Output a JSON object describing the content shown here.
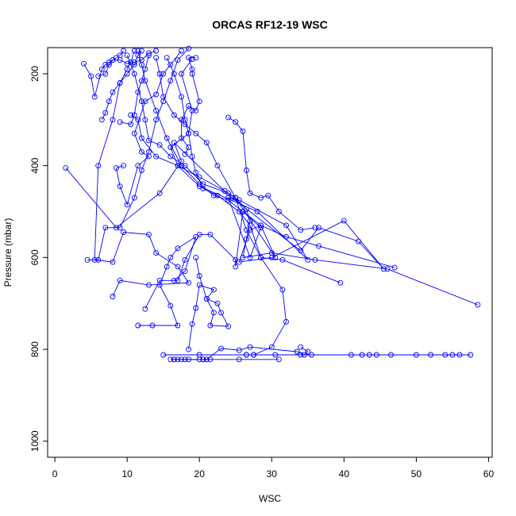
{
  "chart_data": {
    "type": "line",
    "title": "ORCAS RF12-19 WSC",
    "xlabel": "WSC",
    "ylabel": "Pressure (mbar)",
    "xlim": [
      -1,
      60.5
    ],
    "ylim": [
      1035,
      143
    ],
    "y_reversed": true,
    "x_ticks": [
      0,
      10,
      20,
      30,
      40,
      50,
      60
    ],
    "y_ticks": [
      200,
      400,
      600,
      800,
      1000
    ],
    "grid": false,
    "color": "#0000ff",
    "series": [
      {
        "points": [
          [
            1.5,
            405
          ],
          [
            8.5,
            535
          ],
          [
            14.5,
            460
          ],
          [
            17.5,
            390
          ],
          [
            16.5,
            350
          ],
          [
            24.5,
            470
          ],
          [
            34,
            585
          ],
          [
            36.5,
            535
          ],
          [
            42,
            565
          ],
          [
            45.5,
            625
          ],
          [
            40,
            520
          ],
          [
            30,
            600
          ],
          [
            25.5,
            610
          ],
          [
            27,
            540
          ],
          [
            28.5,
            530
          ],
          [
            30.5,
            600
          ],
          [
            25,
            470
          ],
          [
            23.5,
            455
          ],
          [
            20,
            425
          ],
          [
            17,
            400
          ],
          [
            16,
            360
          ],
          [
            18.5,
            330
          ],
          [
            19,
            280
          ],
          [
            17.5,
            200
          ],
          [
            19,
            168
          ]
        ]
      },
      {
        "points": [
          [
            4.5,
            605
          ],
          [
            6,
            605
          ],
          [
            7,
            535
          ],
          [
            9,
            535
          ],
          [
            11,
            470
          ],
          [
            12,
            410
          ],
          [
            13,
            370
          ],
          [
            14,
            300
          ],
          [
            15,
            260
          ],
          [
            16,
            215
          ],
          [
            17,
            170
          ],
          [
            18.5,
            145
          ]
        ]
      },
      {
        "points": [
          [
            8,
            685
          ],
          [
            9,
            650
          ],
          [
            13,
            660
          ],
          [
            18.5,
            655
          ],
          [
            17,
            620
          ],
          [
            14,
            590
          ],
          [
            13,
            550
          ],
          [
            9.5,
            545
          ],
          [
            8,
            610
          ],
          [
            5.5,
            605
          ],
          [
            6,
            400
          ],
          [
            8,
            300
          ],
          [
            9,
            220
          ],
          [
            10,
            190
          ],
          [
            10.5,
            175
          ],
          [
            11,
            150
          ]
        ]
      },
      {
        "points": [
          [
            12.5,
            712
          ],
          [
            14.5,
            650
          ],
          [
            17,
            650
          ],
          [
            18,
            605
          ],
          [
            20,
            550
          ],
          [
            21.5,
            550
          ],
          [
            25,
            605
          ],
          [
            25,
            620
          ],
          [
            26,
            500
          ],
          [
            28.5,
            535
          ],
          [
            27,
            600
          ],
          [
            24,
            470
          ],
          [
            25.5,
            475
          ],
          [
            32,
            530
          ],
          [
            35,
            605
          ],
          [
            28,
            500
          ],
          [
            20,
            445
          ],
          [
            17,
            400
          ],
          [
            14,
            380
          ],
          [
            12,
            340
          ],
          [
            11.5,
            300
          ],
          [
            10.5,
            290
          ]
        ]
      },
      {
        "points": [
          [
            11.5,
            748
          ],
          [
            13.5,
            748
          ],
          [
            17,
            748
          ],
          [
            16,
            705
          ],
          [
            14.5,
            660
          ],
          [
            15.5,
            620
          ],
          [
            16,
            600
          ],
          [
            17,
            580
          ],
          [
            19.5,
            555
          ],
          [
            18,
            630
          ],
          [
            16.5,
            650
          ]
        ]
      },
      {
        "points": [
          [
            15,
            812
          ],
          [
            20,
            812
          ],
          [
            26.5,
            812
          ],
          [
            27.5,
            812
          ],
          [
            30.5,
            812
          ],
          [
            34,
            812
          ],
          [
            35.5,
            812
          ],
          [
            41,
            812
          ],
          [
            42.5,
            812
          ],
          [
            43.5,
            812
          ],
          [
            44.5,
            812
          ],
          [
            46.5,
            812
          ],
          [
            50,
            812
          ],
          [
            52,
            812
          ],
          [
            54,
            812
          ],
          [
            55,
            812
          ],
          [
            56,
            812
          ],
          [
            57.5,
            812
          ]
        ]
      },
      {
        "points": [
          [
            16,
            822
          ],
          [
            16.5,
            822
          ],
          [
            17,
            822
          ],
          [
            18,
            822
          ],
          [
            20.5,
            822
          ],
          [
            21,
            822
          ],
          [
            21.5,
            822
          ],
          [
            25.5,
            822
          ],
          [
            31,
            822
          ]
        ]
      },
      {
        "points": [
          [
            16.5,
            822
          ],
          [
            17.5,
            822
          ],
          [
            18.5,
            822
          ],
          [
            20,
            822
          ],
          [
            20.5,
            822
          ],
          [
            21,
            822
          ],
          [
            23,
            798
          ],
          [
            25.5,
            802
          ],
          [
            27,
            795
          ],
          [
            33.5,
            805
          ],
          [
            34.5,
            812
          ],
          [
            35,
            805
          ],
          [
            34,
            795
          ]
        ]
      },
      {
        "points": [
          [
            18.5,
            800
          ],
          [
            19,
            745
          ],
          [
            19.5,
            710
          ],
          [
            20,
            660
          ],
          [
            22,
            670
          ],
          [
            21,
            690
          ],
          [
            22,
            720
          ],
          [
            21.5,
            748
          ],
          [
            24,
            750
          ],
          [
            23,
            720
          ],
          [
            22.5,
            700
          ],
          [
            21,
            690
          ],
          [
            20,
            640
          ],
          [
            19.5,
            600
          ]
        ]
      },
      {
        "points": [
          [
            26.5,
            812
          ],
          [
            27.5,
            812
          ],
          [
            30,
            795
          ],
          [
            32,
            740
          ],
          [
            31.5,
            670
          ],
          [
            28.5,
            600
          ],
          [
            26.5,
            540
          ],
          [
            25,
            470
          ],
          [
            22.5,
            400
          ],
          [
            21,
            350
          ],
          [
            19.5,
            330
          ],
          [
            18,
            310
          ],
          [
            16.5,
            290
          ],
          [
            15,
            250
          ],
          [
            14.5,
            200
          ],
          [
            14,
            165
          ]
        ]
      },
      {
        "points": [
          [
            58.5,
            703
          ],
          [
            46,
            625
          ],
          [
            36,
            605
          ],
          [
            30,
            590
          ],
          [
            26,
            600
          ],
          [
            26.5,
            560
          ],
          [
            27,
            520
          ],
          [
            26.5,
            495
          ],
          [
            25,
            470
          ],
          [
            24,
            460
          ],
          [
            20.5,
            440
          ],
          [
            18,
            400
          ],
          [
            16,
            380
          ],
          [
            14.5,
            355
          ],
          [
            13,
            345
          ],
          [
            12.5,
            300
          ],
          [
            12,
            260
          ],
          [
            11,
            200
          ],
          [
            10,
            160
          ]
        ]
      },
      {
        "points": [
          [
            39.5,
            655
          ],
          [
            31.5,
            605
          ],
          [
            28.5,
            600
          ],
          [
            27,
            530
          ],
          [
            25.5,
            500
          ],
          [
            22.5,
            465
          ],
          [
            20.5,
            450
          ],
          [
            19.5,
            415
          ],
          [
            19,
            380
          ],
          [
            18.5,
            330
          ],
          [
            18,
            300
          ],
          [
            17.5,
            250
          ],
          [
            16.5,
            200
          ],
          [
            15.5,
            165
          ]
        ]
      },
      {
        "points": [
          [
            47,
            622
          ],
          [
            36.5,
            575
          ],
          [
            32,
            555
          ],
          [
            28.5,
            530
          ],
          [
            26,
            500
          ],
          [
            24,
            475
          ],
          [
            22,
            465
          ],
          [
            20,
            440
          ],
          [
            17.5,
            400
          ],
          [
            15.5,
            340
          ],
          [
            14,
            280
          ],
          [
            12.5,
            215
          ],
          [
            12,
            180
          ],
          [
            11.5,
            150
          ]
        ]
      },
      {
        "points": [
          [
            4,
            178
          ],
          [
            5,
            205
          ],
          [
            5.5,
            250
          ],
          [
            6.5,
            190
          ],
          [
            7,
            180
          ],
          [
            7.5,
            175
          ],
          [
            8,
            170
          ],
          [
            8.5,
            165
          ],
          [
            9,
            160
          ],
          [
            9.5,
            150
          ]
        ]
      },
      {
        "points": [
          [
            6,
            205
          ],
          [
            7,
            200
          ],
          [
            7.5,
            180
          ],
          [
            8,
            170
          ],
          [
            9,
            170
          ],
          [
            10,
            178
          ],
          [
            11,
            175
          ],
          [
            12,
            170
          ],
          [
            13,
            155
          ],
          [
            14,
            150
          ]
        ]
      },
      {
        "points": [
          [
            6.5,
            300
          ],
          [
            7,
            285
          ],
          [
            7.5,
            260
          ],
          [
            8,
            240
          ],
          [
            9,
            220
          ],
          [
            10,
            200
          ],
          [
            11,
            180
          ],
          [
            11.5,
            160
          ],
          [
            12,
            150
          ]
        ]
      },
      {
        "points": [
          [
            9,
            305
          ],
          [
            10.5,
            310
          ],
          [
            11,
            290
          ],
          [
            11.5,
            240
          ],
          [
            12,
            215
          ],
          [
            12.5,
            190
          ],
          [
            13,
            160
          ]
        ]
      },
      {
        "points": [
          [
            9.5,
            400
          ],
          [
            8.5,
            405
          ],
          [
            9,
            445
          ],
          [
            10,
            485
          ],
          [
            11.5,
            400
          ],
          [
            13,
            380
          ],
          [
            12,
            370
          ],
          [
            11,
            330
          ],
          [
            12.5,
            260
          ],
          [
            14,
            245
          ],
          [
            15,
            200
          ],
          [
            16,
            180
          ],
          [
            17.5,
            150
          ]
        ]
      },
      {
        "points": [
          [
            18,
            375
          ],
          [
            18.5,
            360
          ],
          [
            17.5,
            340
          ],
          [
            17.5,
            300
          ],
          [
            18.5,
            270
          ],
          [
            19.5,
            280
          ],
          [
            20,
            260
          ],
          [
            19,
            200
          ],
          [
            19,
            190
          ],
          [
            18.5,
            165
          ],
          [
            19.5,
            165
          ]
        ]
      },
      {
        "points": [
          [
            24,
            295
          ],
          [
            25,
            305
          ],
          [
            26,
            325
          ],
          [
            26.5,
            410
          ],
          [
            27,
            460
          ],
          [
            28.5,
            470
          ],
          [
            29.5,
            465
          ],
          [
            31,
            500
          ],
          [
            34,
            540
          ],
          [
            36,
            535
          ]
        ]
      }
    ]
  }
}
